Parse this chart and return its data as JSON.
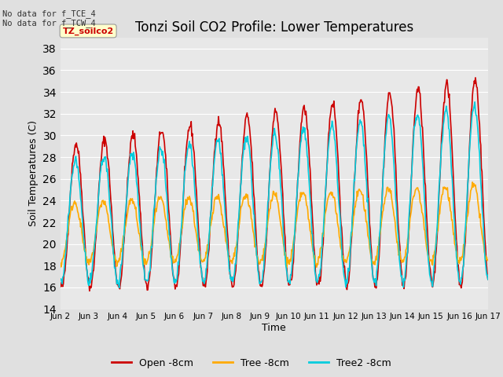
{
  "title": "Tonzi Soil CO2 Profile: Lower Temperatures",
  "xlabel": "Time",
  "ylabel": "Soil Temperatures (C)",
  "ylim": [
    14,
    39
  ],
  "yticks": [
    14,
    16,
    18,
    20,
    22,
    24,
    26,
    28,
    30,
    32,
    34,
    36,
    38
  ],
  "fig_bg_color": "#e0e0e0",
  "plot_bg_color": "#e8e8e8",
  "grid_color": "#ffffff",
  "annotation_text": "No data for f_TCE_4\nNo data for f_TCW_4",
  "watermark_text": "TZ_soilco2",
  "series": {
    "open": {
      "label": "Open -8cm",
      "color": "#cc0000",
      "linewidth": 1.2
    },
    "tree": {
      "label": "Tree -8cm",
      "color": "#ffaa00",
      "linewidth": 1.2
    },
    "tree2": {
      "label": "Tree2 -8cm",
      "color": "#00ccdd",
      "linewidth": 1.2
    }
  },
  "x_tick_labels": [
    "Jun 2",
    "Jun 3",
    "Jun 4",
    "Jun 5",
    "Jun 6",
    "Jun 7",
    "Jun 8",
    "Jun 9",
    "Jun 10",
    "Jun 11",
    "Jun 12",
    "Jun 13",
    "Jun 14",
    "Jun 15",
    "Jun 16",
    "Jun 17"
  ],
  "n_days": 15,
  "pts_per_day": 48
}
